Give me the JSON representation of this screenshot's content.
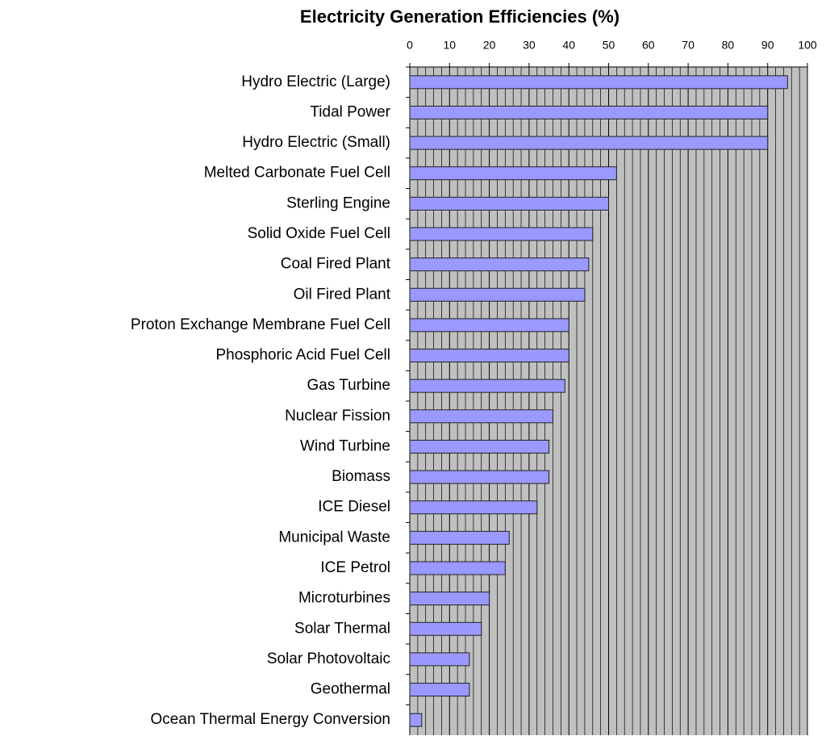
{
  "chart_data": {
    "type": "bar",
    "orientation": "horizontal",
    "title": "Electricity Generation Efficiencies (%)",
    "categories": [
      "Hydro Electric (Large)",
      "Tidal Power",
      "Hydro Electric (Small)",
      "Melted Carbonate Fuel Cell",
      "Sterling Engine",
      "Solid Oxide Fuel Cell",
      "Coal Fired Plant",
      "Oil Fired Plant",
      "Proton Exchange Membrane Fuel Cell",
      "Phosphoric Acid Fuel Cell",
      "Gas Turbine",
      "Nuclear Fission",
      "Wind Turbine",
      "Biomass",
      "ICE Diesel",
      "Municipal Waste",
      "ICE Petrol",
      "Microturbines",
      "Solar Thermal",
      "Solar Photovoltaic",
      "Geothermal",
      "Ocean Thermal Energy Conversion"
    ],
    "values": [
      95,
      90,
      90,
      52,
      50,
      46,
      45,
      44,
      40,
      40,
      39,
      36,
      35,
      35,
      32,
      25,
      24,
      20,
      18,
      15,
      15,
      3
    ],
    "color": "#9999ff",
    "xlim": [
      0,
      100
    ],
    "xticks": [
      0,
      10,
      20,
      30,
      40,
      50,
      60,
      70,
      80,
      90,
      100
    ],
    "grid": true
  }
}
